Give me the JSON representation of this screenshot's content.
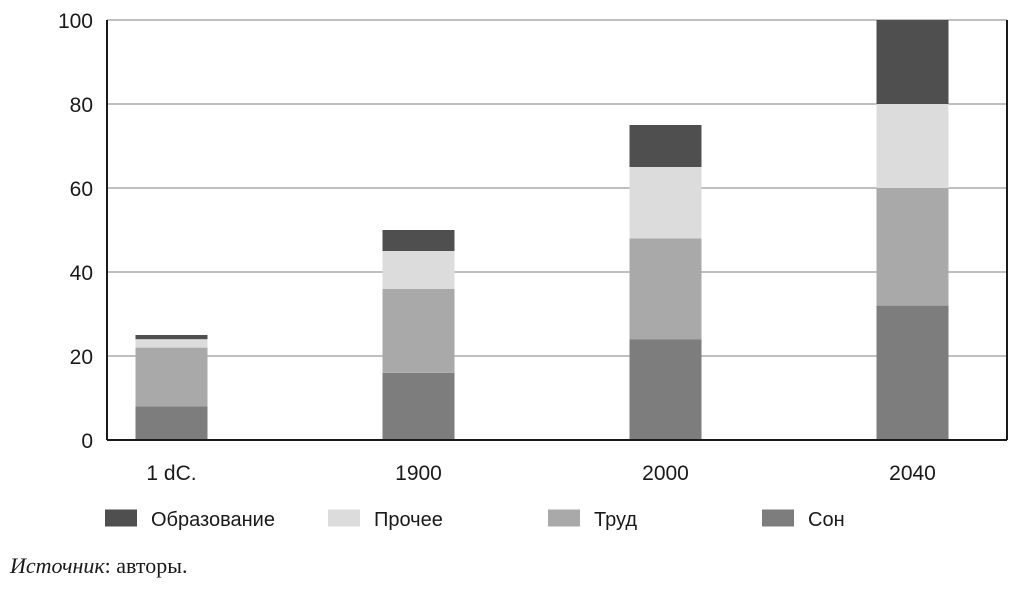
{
  "chart_data": {
    "type": "bar",
    "stacked": true,
    "categories": [
      "1 dC.",
      "1900",
      "2000",
      "2040"
    ],
    "series": [
      {
        "name": "Сон",
        "values": [
          8,
          16,
          24,
          32
        ],
        "color": "#7d7d7d"
      },
      {
        "name": "Труд",
        "values": [
          14,
          20,
          24,
          28
        ],
        "color": "#a9a9a9"
      },
      {
        "name": "Прочее",
        "values": [
          2,
          9,
          17,
          20
        ],
        "color": "#dcdcdc"
      },
      {
        "name": "Образование",
        "values": [
          1,
          5,
          10,
          20
        ],
        "color": "#4f4f4f"
      }
    ],
    "legend_order": [
      "Образование",
      "Прочее",
      "Труд",
      "Сон"
    ],
    "yticks": [
      "0",
      "20",
      "40",
      "60",
      "80",
      "100"
    ],
    "ylim": [
      0,
      100
    ],
    "grid": true,
    "legend_position": "bottom",
    "title": "",
    "xlabel": "",
    "ylabel": ""
  },
  "source": {
    "lead": "Источник",
    "rest": ": авторы."
  }
}
